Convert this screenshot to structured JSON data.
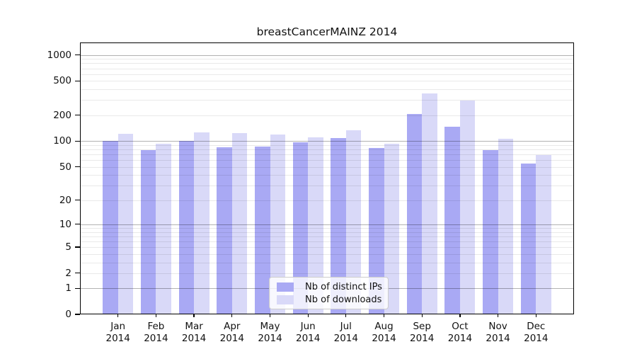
{
  "chart_data": {
    "type": "bar",
    "title": "breastCancerMAINZ 2014",
    "y_scale": "symlog (log10 of value+1), 0 at baseline",
    "categories": [
      "Jan",
      "Feb",
      "Mar",
      "Apr",
      "May",
      "Jun",
      "Jul",
      "Aug",
      "Sep",
      "Oct",
      "Nov",
      "Dec"
    ],
    "year_label": "2014",
    "yticks": [
      0,
      1,
      2,
      5,
      10,
      20,
      50,
      100,
      200,
      500,
      1000
    ],
    "ylim": [
      0,
      1400
    ],
    "grid": "horizontal major (1,10,100,1000) and minor (2-9 per decade), drawn over bars",
    "legend_position": "bottom-center inside plot",
    "series": [
      {
        "name": "Nb of distinct IPs",
        "color": "#a9a9f4",
        "values": [
          100,
          79,
          100,
          85,
          87,
          96,
          108,
          83,
          205,
          146,
          79,
          54
        ]
      },
      {
        "name": "Nb of downloads",
        "color": "#d9d9f8",
        "values": [
          122,
          94,
          126,
          123,
          119,
          111,
          134,
          94,
          357,
          298,
          106,
          69
        ]
      }
    ]
  }
}
